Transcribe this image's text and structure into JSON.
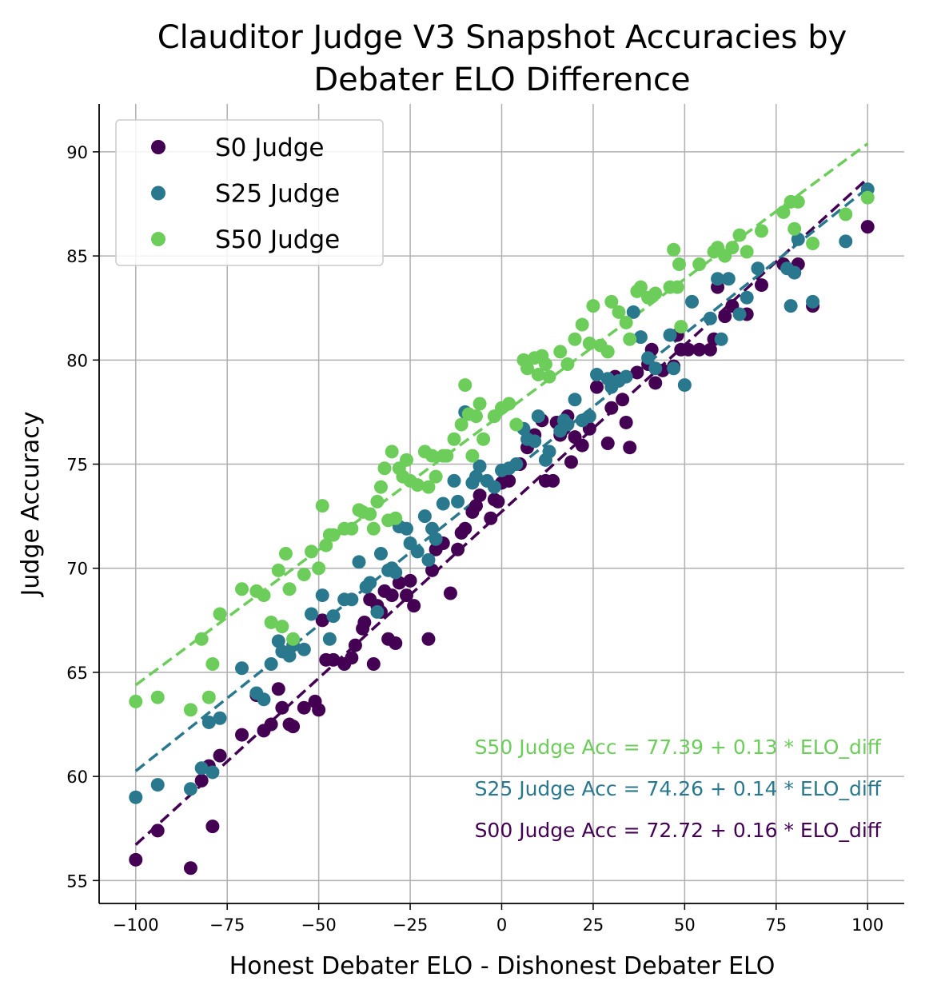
{
  "chart_data": {
    "type": "scatter",
    "title": "Clauditor Judge V3 Snapshot Accuracies by",
    "title_line2": "Debater ELO Difference",
    "xlabel": "Honest Debater ELO - Dishonest Debater ELO",
    "ylabel": "Judge Accuracy",
    "xlim": [
      -110,
      110
    ],
    "ylim": [
      53.9,
      92.3
    ],
    "xticks": [
      -100,
      -75,
      -50,
      -25,
      0,
      25,
      50,
      75,
      100
    ],
    "xtick_labels": [
      "−100",
      "−75",
      "−50",
      "−25",
      "0",
      "25",
      "50",
      "75",
      "100"
    ],
    "yticks": [
      55,
      60,
      65,
      70,
      75,
      80,
      85,
      90
    ],
    "ytick_labels": [
      "55",
      "60",
      "65",
      "70",
      "75",
      "80",
      "85",
      "90"
    ],
    "grid": true,
    "legend_position": "top-left",
    "series": [
      {
        "name": "S0 Judge",
        "color": "#440154",
        "fit": {
          "intercept": 72.72,
          "slope": 0.16,
          "label": "S00 Judge Acc = 72.72 + 0.16 * ELO_diff"
        },
        "points": [
          [
            -100,
            56.0
          ],
          [
            -94,
            57.4
          ],
          [
            -85,
            55.6
          ],
          [
            -82,
            59.8
          ],
          [
            -79,
            57.6
          ],
          [
            -77,
            61.0
          ],
          [
            -80,
            60.5
          ],
          [
            -71,
            62.0
          ],
          [
            -67,
            63.9
          ],
          [
            -65,
            62.2
          ],
          [
            -63,
            62.5
          ],
          [
            -61,
            64.2
          ],
          [
            -60,
            63.3
          ],
          [
            -58,
            62.5
          ],
          [
            -57,
            62.4
          ],
          [
            -54,
            63.3
          ],
          [
            -51,
            63.6
          ],
          [
            -50,
            63.2
          ],
          [
            -49,
            67.5
          ],
          [
            -48,
            65.6
          ],
          [
            -46,
            65.6
          ],
          [
            -43,
            65.4
          ],
          [
            -41,
            65.7
          ],
          [
            -40,
            66.3
          ],
          [
            -38,
            67.1
          ],
          [
            -37.5,
            67.4
          ],
          [
            -36,
            68.5
          ],
          [
            -35,
            65.4
          ],
          [
            -34,
            68.2
          ],
          [
            -33,
            67.9
          ],
          [
            -32,
            68.9
          ],
          [
            -31,
            66.6
          ],
          [
            -29,
            66.4
          ],
          [
            -30,
            68.7
          ],
          [
            -28,
            69.3
          ],
          [
            -26,
            68.7
          ],
          [
            -25,
            69.4
          ],
          [
            -24,
            68.2
          ],
          [
            -20,
            66.6
          ],
          [
            -19,
            69.9
          ],
          [
            -18,
            70.9
          ],
          [
            -16,
            71.2
          ],
          [
            -14,
            68.8
          ],
          [
            -12,
            70.9
          ],
          [
            -11,
            71.7
          ],
          [
            -10,
            71.9
          ],
          [
            -8,
            72.7
          ],
          [
            -7,
            73.0
          ],
          [
            -6,
            73.5
          ],
          [
            -3,
            72.4
          ],
          [
            -2,
            73.3
          ],
          [
            -1,
            73.2
          ],
          [
            0,
            74.1
          ],
          [
            2,
            74.2
          ],
          [
            5,
            75.0
          ],
          [
            7,
            75.8
          ],
          [
            9,
            76.4
          ],
          [
            11,
            77.1
          ],
          [
            12,
            74.2
          ],
          [
            14,
            74.2
          ],
          [
            15,
            77.0
          ],
          [
            16,
            76.4
          ],
          [
            17,
            76.7
          ],
          [
            18,
            77.3
          ],
          [
            19,
            75.1
          ],
          [
            20,
            76.3
          ],
          [
            22,
            75.9
          ],
          [
            24,
            76.7
          ],
          [
            26,
            78.7
          ],
          [
            29,
            76.0
          ],
          [
            30,
            77.7
          ],
          [
            31,
            79.2
          ],
          [
            33,
            78.1
          ],
          [
            34,
            77.0
          ],
          [
            35,
            75.8
          ],
          [
            37,
            79.4
          ],
          [
            40,
            79.8
          ],
          [
            41,
            80.5
          ],
          [
            42,
            78.9
          ],
          [
            44,
            79.5
          ],
          [
            47,
            79.7
          ],
          [
            48,
            81.2
          ],
          [
            49,
            80.5
          ],
          [
            51,
            80.5
          ],
          [
            54,
            80.5
          ],
          [
            57,
            80.5
          ],
          [
            58,
            81.0
          ],
          [
            59,
            83.5
          ],
          [
            61,
            82.1
          ],
          [
            63,
            82.6
          ],
          [
            67,
            82.2
          ],
          [
            71,
            83.6
          ],
          [
            77,
            84.6
          ],
          [
            80,
            84.2
          ],
          [
            81,
            84.6
          ],
          [
            85,
            82.6
          ],
          [
            100,
            86.4
          ]
        ]
      },
      {
        "name": "S25 Judge",
        "color": "#2a788e",
        "fit": {
          "intercept": 74.26,
          "slope": 0.14,
          "label": "S25 Judge Acc = 74.26 + 0.14 * ELO_diff"
        },
        "points": [
          [
            -100,
            59.0
          ],
          [
            -94,
            59.6
          ],
          [
            -85,
            59.4
          ],
          [
            -82,
            60.4
          ],
          [
            -79,
            60.2
          ],
          [
            -80,
            62.6
          ],
          [
            -77,
            62.8
          ],
          [
            -71,
            65.2
          ],
          [
            -67,
            64.0
          ],
          [
            -65,
            63.7
          ],
          [
            -63,
            65.4
          ],
          [
            -61,
            66.5
          ],
          [
            -60,
            66.0
          ],
          [
            -58,
            65.8
          ],
          [
            -57,
            66.3
          ],
          [
            -54,
            66.1
          ],
          [
            -52,
            67.8
          ],
          [
            -49,
            68.7
          ],
          [
            -47,
            66.6
          ],
          [
            -46,
            67.7
          ],
          [
            -43,
            68.5
          ],
          [
            -41,
            68.5
          ],
          [
            -39,
            70.3
          ],
          [
            -37,
            69.1
          ],
          [
            -36,
            69.3
          ],
          [
            -34,
            67.9
          ],
          [
            -33,
            70.7
          ],
          [
            -31,
            69.9
          ],
          [
            -30,
            70.0
          ],
          [
            -29,
            69.8
          ],
          [
            -28,
            72.0
          ],
          [
            -26,
            71.9
          ],
          [
            -25,
            71.2
          ],
          [
            -23,
            70.8
          ],
          [
            -21,
            72.5
          ],
          [
            -20,
            70.4
          ],
          [
            -19,
            71.9
          ],
          [
            -18,
            71.4
          ],
          [
            -16,
            73.1
          ],
          [
            -13,
            74.2
          ],
          [
            -12,
            73.2
          ],
          [
            -10,
            77.5
          ],
          [
            -8,
            74.1
          ],
          [
            -7,
            74.4
          ],
          [
            -6,
            74.9
          ],
          [
            -4,
            74.2
          ],
          [
            -2,
            73.9
          ],
          [
            0,
            74.7
          ],
          [
            2,
            74.8
          ],
          [
            4,
            75.0
          ],
          [
            6,
            76.7
          ],
          [
            7,
            76.2
          ],
          [
            9,
            76.1
          ],
          [
            10,
            77.3
          ],
          [
            12,
            75.2
          ],
          [
            13,
            75.6
          ],
          [
            16,
            76.6
          ],
          [
            17,
            77.1
          ],
          [
            18,
            76.9
          ],
          [
            20,
            78.1
          ],
          [
            22,
            77.1
          ],
          [
            24,
            77.3
          ],
          [
            26,
            79.3
          ],
          [
            29,
            79.1
          ],
          [
            30,
            78.7
          ],
          [
            32,
            79.0
          ],
          [
            34,
            79.2
          ],
          [
            36,
            82.3
          ],
          [
            38,
            81.1
          ],
          [
            40,
            80.1
          ],
          [
            42,
            79.6
          ],
          [
            46,
            81.2
          ],
          [
            47,
            79.6
          ],
          [
            50,
            78.8
          ],
          [
            52,
            82.8
          ],
          [
            57,
            82.0
          ],
          [
            59,
            83.9
          ],
          [
            60,
            81.0
          ],
          [
            62,
            83.9
          ],
          [
            65,
            82.2
          ],
          [
            67,
            83.0
          ],
          [
            70,
            84.4
          ],
          [
            78,
            84.4
          ],
          [
            79,
            82.6
          ],
          [
            80,
            84.2
          ],
          [
            81,
            85.8
          ],
          [
            85,
            82.8
          ],
          [
            94,
            85.7
          ],
          [
            100,
            88.2
          ]
        ]
      },
      {
        "name": "S50 Judge",
        "color": "#6ccd5a",
        "fit": {
          "intercept": 77.39,
          "slope": 0.13,
          "label": "S50 Judge Acc = 77.39 + 0.13 * ELO_diff"
        },
        "points": [
          [
            -100,
            63.6
          ],
          [
            -94,
            63.8
          ],
          [
            -85,
            63.2
          ],
          [
            -82,
            66.6
          ],
          [
            -80,
            63.8
          ],
          [
            -79,
            65.4
          ],
          [
            -77,
            67.8
          ],
          [
            -71,
            69.0
          ],
          [
            -67,
            68.9
          ],
          [
            -65,
            68.7
          ],
          [
            -63,
            67.4
          ],
          [
            -61,
            69.9
          ],
          [
            -60,
            67.2
          ],
          [
            -59,
            70.7
          ],
          [
            -58,
            69.0
          ],
          [
            -57,
            66.6
          ],
          [
            -54,
            69.7
          ],
          [
            -52,
            70.8
          ],
          [
            -50,
            70.0
          ],
          [
            -49,
            73.0
          ],
          [
            -48,
            71.1
          ],
          [
            -47,
            71.6
          ],
          [
            -46,
            71.6
          ],
          [
            -43,
            71.9
          ],
          [
            -41,
            71.9
          ],
          [
            -39,
            72.8
          ],
          [
            -38,
            72.7
          ],
          [
            -36,
            72.6
          ],
          [
            -35,
            71.9
          ],
          [
            -34,
            73.2
          ],
          [
            -33,
            73.9
          ],
          [
            -32,
            74.8
          ],
          [
            -31,
            72.3
          ],
          [
            -30,
            75.6
          ],
          [
            -29,
            72.4
          ],
          [
            -28,
            74.8
          ],
          [
            -27,
            74.4
          ],
          [
            -26,
            75.2
          ],
          [
            -25,
            74.2
          ],
          [
            -23,
            74.0
          ],
          [
            -21,
            75.6
          ],
          [
            -20,
            73.9
          ],
          [
            -19,
            75.4
          ],
          [
            -18,
            74.4
          ],
          [
            -16,
            75.4
          ],
          [
            -15,
            75.4
          ],
          [
            -13,
            76.2
          ],
          [
            -11,
            76.9
          ],
          [
            -10,
            78.8
          ],
          [
            -9,
            77.4
          ],
          [
            -8,
            75.4
          ],
          [
            -7,
            77.3
          ],
          [
            -6,
            77.9
          ],
          [
            -5,
            76.2
          ],
          [
            -2,
            77.3
          ],
          [
            0,
            77.7
          ],
          [
            2,
            77.9
          ],
          [
            4,
            76.9
          ],
          [
            6,
            80.0
          ],
          [
            7,
            79.6
          ],
          [
            9,
            80.1
          ],
          [
            10,
            79.3
          ],
          [
            11,
            80.2
          ],
          [
            12,
            79.8
          ],
          [
            13,
            79.2
          ],
          [
            16,
            80.4
          ],
          [
            18,
            79.8
          ],
          [
            20,
            81.0
          ],
          [
            22,
            81.7
          ],
          [
            24,
            80.8
          ],
          [
            25,
            82.6
          ],
          [
            27,
            80.7
          ],
          [
            29,
            80.4
          ],
          [
            30,
            82.8
          ],
          [
            32,
            82.3
          ],
          [
            34,
            81.8
          ],
          [
            35,
            81.0
          ],
          [
            37,
            83.3
          ],
          [
            38,
            83.5
          ],
          [
            40,
            83.0
          ],
          [
            42,
            83.2
          ],
          [
            46,
            83.5
          ],
          [
            47,
            85.3
          ],
          [
            48,
            83.5
          ],
          [
            49,
            81.6
          ],
          [
            48.5,
            84.6
          ],
          [
            54,
            84.6
          ],
          [
            58,
            85.2
          ],
          [
            59,
            85.4
          ],
          [
            61,
            85.0
          ],
          [
            63,
            85.4
          ],
          [
            65,
            86.0
          ],
          [
            67,
            85.2
          ],
          [
            71,
            86.2
          ],
          [
            77,
            87.1
          ],
          [
            79,
            87.6
          ],
          [
            80,
            86.3
          ],
          [
            81,
            87.6
          ],
          [
            85,
            85.6
          ],
          [
            94,
            87.0
          ],
          [
            100,
            87.8
          ]
        ]
      }
    ]
  }
}
